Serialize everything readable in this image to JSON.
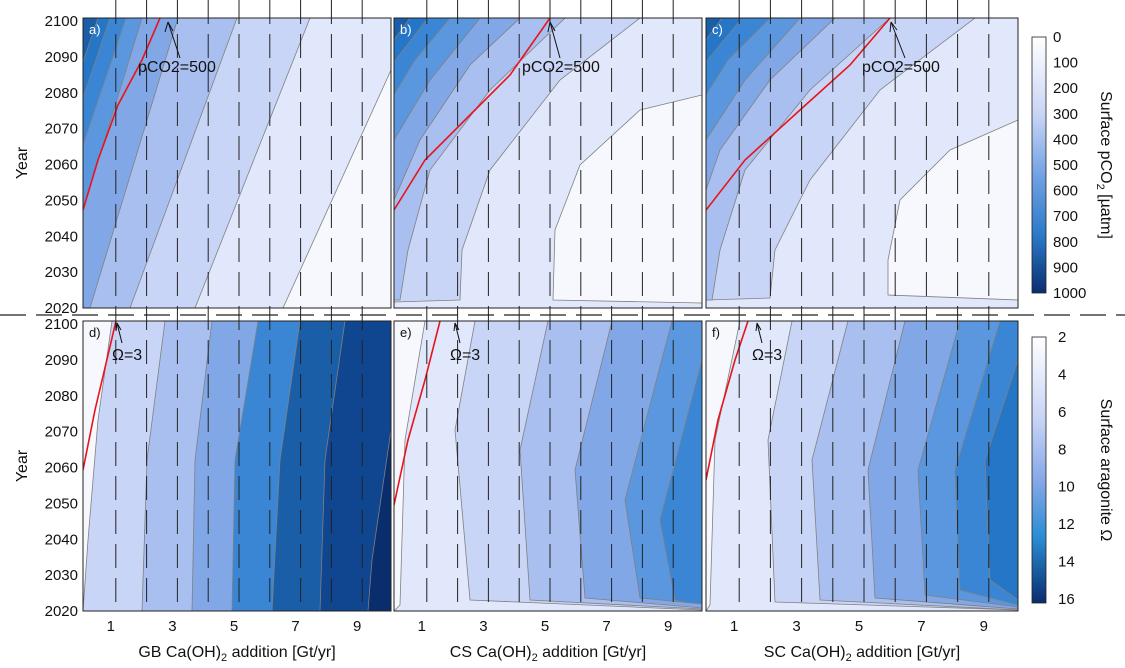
{
  "chart_data": [
    {
      "type": "contour",
      "panel": "a)",
      "xlabel": "GB Ca(OH)",
      "xlabel_sub": "2",
      "xlabel_tail": " addition [Gt/yr]",
      "ylabel": "Year",
      "annotation": "pCO2=500",
      "colorbar_label": "Surface pCO",
      "colorbar_sub": "2",
      "colorbar_unit": " [µatm]",
      "levels": [
        0,
        100,
        200,
        300,
        400,
        500,
        600,
        700,
        800,
        900,
        1000
      ],
      "x_range": [
        0,
        10
      ],
      "y_range": [
        2020,
        2100
      ]
    },
    {
      "type": "contour",
      "panel": "b)",
      "xlabel": "CS Ca(OH)",
      "xlabel_sub": "2",
      "xlabel_tail": " addition [Gt/yr]",
      "annotation": "pCO2=500"
    },
    {
      "type": "contour",
      "panel": "c)",
      "xlabel": "SC Ca(OH)",
      "xlabel_sub": "2",
      "xlabel_tail": " addition [Gt/yr]",
      "annotation": "pCO2=500"
    },
    {
      "type": "contour",
      "panel": "d)",
      "xlabel": "GB Ca(OH)",
      "xlabel_sub": "2",
      "xlabel_tail": " addition [Gt/yr]",
      "ylabel": "Year",
      "annotation": "Ω=3",
      "colorbar_label": "Surface aragonite Ω",
      "levels": [
        2,
        4,
        6,
        8,
        10,
        12,
        14,
        16
      ]
    },
    {
      "type": "contour",
      "panel": "e)",
      "xlabel": "CS Ca(OH)",
      "xlabel_sub": "2",
      "xlabel_tail": " addition [Gt/yr]",
      "annotation": "Ω=3"
    },
    {
      "type": "contour",
      "panel": "f)",
      "xlabel": "SC Ca(OH)",
      "xlabel_sub": "2",
      "xlabel_tail": " addition [Gt/yr]",
      "annotation": "Ω=3"
    }
  ],
  "axes": {
    "year_ticks": [
      "2020",
      "2030",
      "2040",
      "2050",
      "2060",
      "2070",
      "2080",
      "2090",
      "2100"
    ],
    "x_ticks": [
      "1",
      "3",
      "5",
      "7",
      "9"
    ],
    "pco2_ticks": [
      "0",
      "100",
      "200",
      "300",
      "400",
      "500",
      "600",
      "700",
      "800",
      "900",
      "1000"
    ],
    "omega_ticks": [
      "2",
      "4",
      "6",
      "8",
      "10",
      "12",
      "14",
      "16"
    ]
  },
  "colors": {
    "c0": "#f7f8fe",
    "c1": "#e2e8fb",
    "c2": "#c9d5f6",
    "c3": "#a9bff0",
    "c4": "#82a7e6",
    "c5": "#5a97df",
    "c6": "#3a86d4",
    "c7": "#2576c6",
    "c8": "#1a5ea8",
    "c9": "#10458f",
    "c10": "#0a2d6e",
    "threshold": "#e8141a"
  }
}
